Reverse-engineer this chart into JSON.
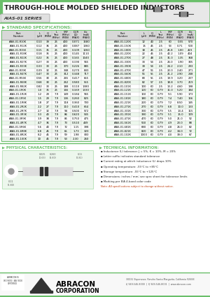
{
  "title": "THROUGH-HOLE MOLDED SHIELDED INDUCTORS",
  "subtitle": "AIAS-01 SERIES",
  "bg_color": "#ffffff",
  "green_color": "#6abf6a",
  "light_green": "#edf7ed",
  "section_label": "STANDARD SPECIFICATIONS:",
  "hdr_labels": [
    "Part\nNumber",
    "L\n(μH)",
    "Q\n(MIN)",
    "L\nTest\n(MHz)",
    "SRF\n(MHz)\n(MIN)",
    "DCR\n(Ω)\n(MAX)",
    "Idc\n(mA)\n(MAX)"
  ],
  "left_data": [
    [
      "AIAS-01-R10K",
      "0.10",
      "39",
      "25",
      "400",
      "0.071",
      "1580"
    ],
    [
      "AIAS-01-R12K",
      "0.12",
      "36",
      "25",
      "400",
      "0.087",
      "1360"
    ],
    [
      "AIAS-01-R15K",
      "0.15",
      "35",
      "25",
      "400",
      "0.109",
      "1260"
    ],
    [
      "AIAS-01-R18K",
      "0.18",
      "35",
      "25",
      "400",
      "0.145",
      "1110"
    ],
    [
      "AIAS-01-R22K",
      "0.22",
      "35",
      "25",
      "400",
      "0.165",
      "1040"
    ],
    [
      "AIAS-01-R27K",
      "0.27",
      "33",
      "25",
      "400",
      "0.190",
      "965"
    ],
    [
      "AIAS-01-R33K",
      "0.33",
      "33",
      "25",
      "370",
      "0.226",
      "885"
    ],
    [
      "AIAS-01-R39K",
      "0.39",
      "32",
      "25",
      "348",
      "0.270",
      "830"
    ],
    [
      "AIAS-01-R47K",
      "0.47",
      "33",
      "25",
      "312",
      "0.348",
      "717"
    ],
    [
      "AIAS-01-R56K",
      "0.56",
      "30",
      "25",
      "265",
      "0.417",
      "655"
    ],
    [
      "AIAS-01-R68K",
      "0.68",
      "30",
      "25",
      "262",
      "0.580",
      "555"
    ],
    [
      "AIAS-01-R82K",
      "0.82",
      "33",
      "25",
      "188",
      "0.110",
      "1380"
    ],
    [
      "AIAS-01-1R0K",
      "1.0",
      "35",
      "25",
      "166",
      "0.169",
      "1330"
    ],
    [
      "AIAS-01-1R2K",
      "1.2",
      "29",
      "7.9",
      "149",
      "0.184",
      "965"
    ],
    [
      "AIAS-01-1R5K",
      "1.5",
      "29",
      "7.9",
      "136",
      "0.260",
      "825"
    ],
    [
      "AIAS-01-1R8K",
      "1.8",
      "27",
      "7.9",
      "118",
      "0.360",
      "700"
    ],
    [
      "AIAS-01-2R2K",
      "2.2",
      "27",
      "7.9",
      "110",
      "0.410",
      "664"
    ],
    [
      "AIAS-01-2R7K",
      "2.7",
      "32",
      "7.9",
      "94",
      "0.500",
      "572"
    ],
    [
      "AIAS-01-3R3K",
      "3.3",
      "43",
      "7.9",
      "86",
      "0.620",
      "545"
    ],
    [
      "AIAS-01-3R9K",
      "3.9",
      "38",
      "7.9",
      "85",
      "0.750",
      "475"
    ],
    [
      "AIAS-01-4R7K",
      "4.7",
      "36",
      "7.9",
      "73",
      "0.510",
      "449"
    ],
    [
      "AIAS-01-5R6K",
      "5.6",
      "40",
      "7.9",
      "72",
      "1.15",
      "398"
    ],
    [
      "AIAS-01-6R8K",
      "6.8",
      "45",
      "7.9",
      "65",
      "1.73",
      "320"
    ],
    [
      "AIAS-01-8R2K",
      "8.2",
      "45",
      "7.9",
      "59",
      "1.98",
      "300"
    ],
    [
      "AIAS-01-100K",
      "10",
      "45",
      "7.9",
      "53",
      "2.30",
      "260"
    ]
  ],
  "right_data": [
    [
      "AIAS-01-120K",
      "12",
      "40",
      "2.5",
      "60",
      "0.55",
      "570"
    ],
    [
      "AIAS-01-150K",
      "15",
      "45",
      "2.5",
      "53",
      "0.71",
      "500"
    ],
    [
      "AIAS-01-180K",
      "18",
      "45",
      "2.5",
      "45.8",
      "1.00",
      "423"
    ],
    [
      "AIAS-01-220K",
      "22",
      "45",
      "2.5",
      "42.2",
      "1.09",
      "404"
    ],
    [
      "AIAS-01-270K",
      "27",
      "48",
      "2.5",
      "31.0",
      "1.35",
      "368"
    ],
    [
      "AIAS-01-330K",
      "33",
      "54",
      "2.5",
      "26.0",
      "1.90",
      "305"
    ],
    [
      "AIAS-01-390K",
      "39",
      "54",
      "2.5",
      "24.2",
      "2.10",
      "293"
    ],
    [
      "AIAS-01-470K",
      "47",
      "56",
      "2.5",
      "22.0",
      "2.40",
      "271"
    ],
    [
      "AIAS-01-560K",
      "56",
      "55",
      "2.5",
      "21.2",
      "2.90",
      "248"
    ],
    [
      "AIAS-01-680K",
      "68",
      "55",
      "2.5",
      "19.9",
      "3.20",
      "237"
    ],
    [
      "AIAS-01-820K",
      "82",
      "57",
      "2.5",
      "18.8",
      "3.70",
      "219"
    ],
    [
      "AIAS-01-101K",
      "100",
      "60",
      "2.5",
      "13.2",
      "4.60",
      "198"
    ],
    [
      "AIAS-01-121K",
      "120",
      "60",
      "0.79",
      "11.0",
      "5.20",
      "184"
    ],
    [
      "AIAS-01-151K",
      "150",
      "60",
      "0.79",
      "9.1",
      "5.90",
      "173"
    ],
    [
      "AIAS-01-181K",
      "180",
      "60",
      "0.79",
      "7.4",
      "7.40",
      "156"
    ],
    [
      "AIAS-01-221K",
      "220",
      "60",
      "0.79",
      "7.2",
      "8.50",
      "145"
    ],
    [
      "AIAS-01-271K",
      "270",
      "60",
      "0.79",
      "6.8",
      "10.0",
      "133"
    ],
    [
      "AIAS-01-331K",
      "330",
      "60",
      "0.79",
      "5.5",
      "13.4",
      "115"
    ],
    [
      "AIAS-01-391K",
      "390",
      "60",
      "0.79",
      "5.1",
      "15.0",
      "109"
    ],
    [
      "AIAS-01-471K",
      "470",
      "60",
      "0.79",
      "5.0",
      "21.0",
      "92"
    ],
    [
      "AIAS-01-561K",
      "560",
      "60",
      "0.79",
      "4.9",
      "23.0",
      "88"
    ],
    [
      "AIAS-01-681K",
      "680",
      "60",
      "0.79",
      "4.8",
      "26.0",
      "82"
    ],
    [
      "AIAS-01-821K",
      "820",
      "60",
      "0.79",
      "4.2",
      "34.0",
      "72"
    ],
    [
      "AIAS-01-102K",
      "1000",
      "60",
      "0.79",
      "4.0",
      "39.0",
      "67"
    ]
  ],
  "phys_title": "PHYSICAL CHARACTERISTICS:",
  "tech_title": "TECHNICAL INFORMATION:",
  "tech_bullets": [
    "Inductance (L) tolerance: J = 5%, K = 10%, M = 20%",
    "Letter suffix indicates standard tolerance",
    "Current rating at which inductance (L) drops 10%",
    "Operating temperature: -55°C to +85°C",
    "Storage temperature: -55°C to +125°C",
    "Dimensions: inches / mm; see spec sheet for tolerance limits",
    "Marking per EIA 4-band color code"
  ],
  "tech_note": "Note: All specifications subject to change without notice.",
  "address": "30032 Esperanza, Rancho Santa Margarita, California 92688\nt| 949-546-8000  |  f| 949-546-8001  |  www.abracon.com"
}
